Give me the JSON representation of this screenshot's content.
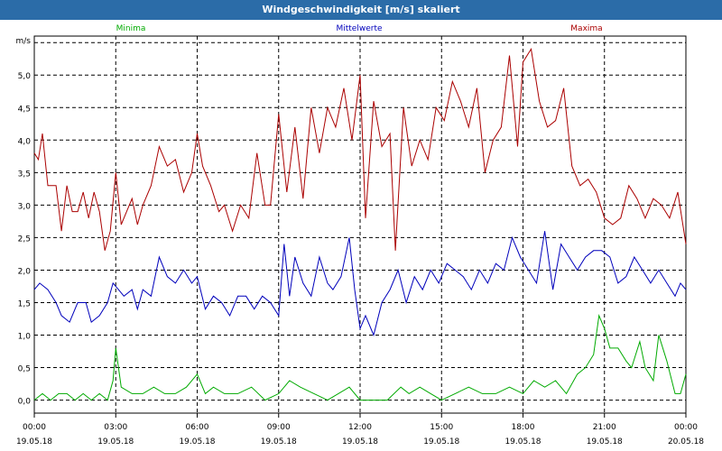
{
  "window": {
    "title": "Windgeschwindigkeit [m/s] skaliert"
  },
  "chart_data": {
    "type": "line",
    "title": "Windgeschwindigkeit [m/s] skaliert",
    "ylabel": "m/s",
    "xlabel": "",
    "ylim": [
      -0.2,
      5.6
    ],
    "xlim": [
      0,
      24
    ],
    "grid": true,
    "legend_position": "top",
    "y_ticks": [
      "0,0",
      "0,5",
      "1,0",
      "1,5",
      "2,0",
      "2,5",
      "3,0",
      "3,5",
      "4,0",
      "4,5",
      "5,0"
    ],
    "x_ticks": [
      {
        "time": "00:00",
        "date": "19.05.18"
      },
      {
        "time": "03:00",
        "date": "19.05.18"
      },
      {
        "time": "06:00",
        "date": "19.05.18"
      },
      {
        "time": "09:00",
        "date": "19.05.18"
      },
      {
        "time": "12:00",
        "date": "19.05.18"
      },
      {
        "time": "15:00",
        "date": "19.05.18"
      },
      {
        "time": "18:00",
        "date": "19.05.18"
      },
      {
        "time": "21:00",
        "date": "19.05.18"
      },
      {
        "time": "00:00",
        "date": "20.05.18"
      }
    ],
    "x_unit": "hours since 19.05.18 00:00",
    "series": [
      {
        "name": "Minima",
        "color": "#00aa00",
        "values": [
          [
            0,
            0.0
          ],
          [
            0.3,
            0.1
          ],
          [
            0.6,
            0.0
          ],
          [
            0.9,
            0.1
          ],
          [
            1.2,
            0.1
          ],
          [
            1.5,
            0.0
          ],
          [
            1.8,
            0.1
          ],
          [
            2.1,
            0.0
          ],
          [
            2.4,
            0.1
          ],
          [
            2.7,
            0.0
          ],
          [
            2.9,
            0.3
          ],
          [
            3.0,
            0.8
          ],
          [
            3.2,
            0.2
          ],
          [
            3.6,
            0.1
          ],
          [
            4.0,
            0.1
          ],
          [
            4.4,
            0.2
          ],
          [
            4.8,
            0.1
          ],
          [
            5.2,
            0.1
          ],
          [
            5.6,
            0.2
          ],
          [
            6.0,
            0.4
          ],
          [
            6.3,
            0.1
          ],
          [
            6.6,
            0.2
          ],
          [
            7.0,
            0.1
          ],
          [
            7.5,
            0.1
          ],
          [
            8.0,
            0.2
          ],
          [
            8.5,
            0.0
          ],
          [
            9.0,
            0.1
          ],
          [
            9.4,
            0.3
          ],
          [
            9.8,
            0.2
          ],
          [
            10.3,
            0.1
          ],
          [
            10.8,
            0.0
          ],
          [
            11.2,
            0.1
          ],
          [
            11.6,
            0.2
          ],
          [
            12.0,
            0.0
          ],
          [
            12.5,
            0.0
          ],
          [
            13.0,
            0.0
          ],
          [
            13.5,
            0.2
          ],
          [
            13.8,
            0.1
          ],
          [
            14.2,
            0.2
          ],
          [
            14.6,
            0.1
          ],
          [
            15.0,
            0.0
          ],
          [
            15.5,
            0.1
          ],
          [
            16.0,
            0.2
          ],
          [
            16.5,
            0.1
          ],
          [
            17.0,
            0.1
          ],
          [
            17.5,
            0.2
          ],
          [
            18.0,
            0.1
          ],
          [
            18.4,
            0.3
          ],
          [
            18.8,
            0.2
          ],
          [
            19.2,
            0.3
          ],
          [
            19.6,
            0.1
          ],
          [
            20.0,
            0.4
          ],
          [
            20.3,
            0.5
          ],
          [
            20.6,
            0.7
          ],
          [
            20.8,
            1.3
          ],
          [
            21.0,
            1.1
          ],
          [
            21.2,
            0.8
          ],
          [
            21.5,
            0.8
          ],
          [
            21.8,
            0.6
          ],
          [
            22.0,
            0.5
          ],
          [
            22.3,
            0.9
          ],
          [
            22.5,
            0.5
          ],
          [
            22.8,
            0.3
          ],
          [
            23.0,
            1.0
          ],
          [
            23.3,
            0.6
          ],
          [
            23.6,
            0.1
          ],
          [
            23.8,
            0.1
          ],
          [
            24.0,
            0.4
          ]
        ]
      },
      {
        "name": "Mittelwerte",
        "color": "#0000bb",
        "values": [
          [
            0,
            1.7
          ],
          [
            0.2,
            1.8
          ],
          [
            0.5,
            1.7
          ],
          [
            0.8,
            1.5
          ],
          [
            1.0,
            1.3
          ],
          [
            1.3,
            1.2
          ],
          [
            1.6,
            1.5
          ],
          [
            1.9,
            1.5
          ],
          [
            2.1,
            1.2
          ],
          [
            2.4,
            1.3
          ],
          [
            2.7,
            1.5
          ],
          [
            2.9,
            1.8
          ],
          [
            3.1,
            1.7
          ],
          [
            3.3,
            1.6
          ],
          [
            3.6,
            1.7
          ],
          [
            3.8,
            1.4
          ],
          [
            4.0,
            1.7
          ],
          [
            4.3,
            1.6
          ],
          [
            4.6,
            2.2
          ],
          [
            4.9,
            1.9
          ],
          [
            5.2,
            1.8
          ],
          [
            5.5,
            2.0
          ],
          [
            5.8,
            1.8
          ],
          [
            6.0,
            1.9
          ],
          [
            6.3,
            1.4
          ],
          [
            6.6,
            1.6
          ],
          [
            6.9,
            1.5
          ],
          [
            7.2,
            1.3
          ],
          [
            7.5,
            1.6
          ],
          [
            7.8,
            1.6
          ],
          [
            8.1,
            1.4
          ],
          [
            8.4,
            1.6
          ],
          [
            8.7,
            1.5
          ],
          [
            9.0,
            1.3
          ],
          [
            9.2,
            2.4
          ],
          [
            9.4,
            1.6
          ],
          [
            9.6,
            2.2
          ],
          [
            9.9,
            1.8
          ],
          [
            10.2,
            1.6
          ],
          [
            10.5,
            2.2
          ],
          [
            10.8,
            1.8
          ],
          [
            11.0,
            1.7
          ],
          [
            11.3,
            1.9
          ],
          [
            11.6,
            2.5
          ],
          [
            11.8,
            1.7
          ],
          [
            12.0,
            1.1
          ],
          [
            12.2,
            1.3
          ],
          [
            12.5,
            1.0
          ],
          [
            12.8,
            1.5
          ],
          [
            13.1,
            1.7
          ],
          [
            13.4,
            2.0
          ],
          [
            13.7,
            1.5
          ],
          [
            14.0,
            1.9
          ],
          [
            14.3,
            1.7
          ],
          [
            14.6,
            2.0
          ],
          [
            14.9,
            1.8
          ],
          [
            15.2,
            2.1
          ],
          [
            15.5,
            2.0
          ],
          [
            15.8,
            1.9
          ],
          [
            16.1,
            1.7
          ],
          [
            16.4,
            2.0
          ],
          [
            16.7,
            1.8
          ],
          [
            17.0,
            2.1
          ],
          [
            17.3,
            2.0
          ],
          [
            17.6,
            2.5
          ],
          [
            17.9,
            2.2
          ],
          [
            18.2,
            2.0
          ],
          [
            18.5,
            1.8
          ],
          [
            18.8,
            2.6
          ],
          [
            19.1,
            1.7
          ],
          [
            19.4,
            2.4
          ],
          [
            19.7,
            2.2
          ],
          [
            20.0,
            2.0
          ],
          [
            20.3,
            2.2
          ],
          [
            20.6,
            2.3
          ],
          [
            20.9,
            2.3
          ],
          [
            21.2,
            2.2
          ],
          [
            21.5,
            1.8
          ],
          [
            21.8,
            1.9
          ],
          [
            22.1,
            2.2
          ],
          [
            22.4,
            2.0
          ],
          [
            22.7,
            1.8
          ],
          [
            23.0,
            2.0
          ],
          [
            23.3,
            1.8
          ],
          [
            23.6,
            1.6
          ],
          [
            23.8,
            1.8
          ],
          [
            24.0,
            1.7
          ]
        ]
      },
      {
        "name": "Maxima",
        "color": "#aa0000",
        "values": [
          [
            0,
            3.8
          ],
          [
            0.15,
            3.7
          ],
          [
            0.3,
            4.1
          ],
          [
            0.5,
            3.3
          ],
          [
            0.8,
            3.3
          ],
          [
            1.0,
            2.6
          ],
          [
            1.2,
            3.3
          ],
          [
            1.4,
            2.9
          ],
          [
            1.6,
            2.9
          ],
          [
            1.8,
            3.2
          ],
          [
            2.0,
            2.8
          ],
          [
            2.2,
            3.2
          ],
          [
            2.4,
            2.9
          ],
          [
            2.6,
            2.3
          ],
          [
            2.8,
            2.6
          ],
          [
            3.0,
            3.5
          ],
          [
            3.2,
            2.7
          ],
          [
            3.4,
            2.9
          ],
          [
            3.6,
            3.1
          ],
          [
            3.8,
            2.7
          ],
          [
            4.0,
            3.0
          ],
          [
            4.3,
            3.3
          ],
          [
            4.6,
            3.9
          ],
          [
            4.9,
            3.6
          ],
          [
            5.2,
            3.7
          ],
          [
            5.5,
            3.2
          ],
          [
            5.8,
            3.5
          ],
          [
            6.0,
            4.1
          ],
          [
            6.2,
            3.6
          ],
          [
            6.5,
            3.3
          ],
          [
            6.8,
            2.9
          ],
          [
            7.0,
            3.0
          ],
          [
            7.3,
            2.6
          ],
          [
            7.6,
            3.0
          ],
          [
            7.9,
            2.8
          ],
          [
            8.2,
            3.8
          ],
          [
            8.5,
            3.0
          ],
          [
            8.7,
            3.0
          ],
          [
            9.0,
            4.4
          ],
          [
            9.3,
            3.2
          ],
          [
            9.6,
            4.2
          ],
          [
            9.9,
            3.1
          ],
          [
            10.2,
            4.5
          ],
          [
            10.5,
            3.8
          ],
          [
            10.8,
            4.5
          ],
          [
            11.1,
            4.2
          ],
          [
            11.4,
            4.8
          ],
          [
            11.7,
            4.0
          ],
          [
            12.0,
            5.0
          ],
          [
            12.2,
            2.8
          ],
          [
            12.5,
            4.6
          ],
          [
            12.8,
            3.9
          ],
          [
            13.1,
            4.1
          ],
          [
            13.3,
            2.3
          ],
          [
            13.6,
            4.5
          ],
          [
            13.9,
            3.6
          ],
          [
            14.2,
            4.0
          ],
          [
            14.5,
            3.7
          ],
          [
            14.8,
            4.5
          ],
          [
            15.1,
            4.3
          ],
          [
            15.4,
            4.9
          ],
          [
            15.7,
            4.6
          ],
          [
            16.0,
            4.2
          ],
          [
            16.3,
            4.8
          ],
          [
            16.6,
            3.5
          ],
          [
            16.9,
            4.0
          ],
          [
            17.2,
            4.2
          ],
          [
            17.5,
            5.3
          ],
          [
            17.8,
            3.9
          ],
          [
            18.0,
            5.2
          ],
          [
            18.3,
            5.4
          ],
          [
            18.6,
            4.6
          ],
          [
            18.9,
            4.2
          ],
          [
            19.2,
            4.3
          ],
          [
            19.5,
            4.8
          ],
          [
            19.8,
            3.6
          ],
          [
            20.1,
            3.3
          ],
          [
            20.4,
            3.4
          ],
          [
            20.7,
            3.2
          ],
          [
            21.0,
            2.8
          ],
          [
            21.3,
            2.7
          ],
          [
            21.6,
            2.8
          ],
          [
            21.9,
            3.3
          ],
          [
            22.2,
            3.1
          ],
          [
            22.5,
            2.8
          ],
          [
            22.8,
            3.1
          ],
          [
            23.1,
            3.0
          ],
          [
            23.4,
            2.8
          ],
          [
            23.7,
            3.2
          ],
          [
            24.0,
            2.4
          ]
        ]
      }
    ]
  }
}
